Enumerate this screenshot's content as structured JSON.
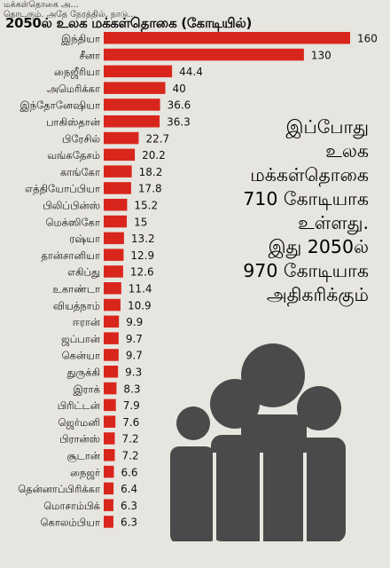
{
  "top_text": {
    "line1": "மக்கள்தொகை அ...                                         ",
    "line2": "தொடரும்.   அதே   நேரத்தில்,   நாடு..."
  },
  "annotation": {
    "lines": [
      "இப்போது",
      "உலக",
      "மக்கள்தொகை",
      "710 கோடியாக",
      "உள்ளது.",
      "இது 2050ல்",
      "970 கோடியாக",
      "அதிகரிக்கும்"
    ]
  },
  "colors": {
    "bar": "#d9261c",
    "background": "#e7e5df",
    "figures": "#4a4a4a"
  },
  "chart_data": {
    "type": "bar",
    "orientation": "horizontal",
    "title": "2050ல் உலக மக்கள்தொகை (கோடியில்)",
    "categories": [
      "இந்தியா",
      "சீனா",
      "நைஜீரியா",
      "அமெரிக்கா",
      "இந்தோனேஷியா",
      "பாகிஸ்தான்",
      "பிரேசில்",
      "வங்கதேசம்",
      "காங்கோ",
      "எத்தியோப்பியா",
      "பிலிப்பின்ஸ்",
      "மெக்ஸிகோ",
      "ரஷ்யா",
      "தான்சானியா",
      "எகிப்து",
      "உகாண்டா",
      "வியத்நாம்",
      "ஈரான்",
      "ஜப்பான்",
      "கென்யா",
      "துருக்கி",
      "இராக்",
      "பிரிட்டன்",
      "ஜெர்மனி",
      "பிரான்ஸ்",
      "சூடான்",
      "நைஜர்",
      "தென்னாப்பிரிக்கா",
      "மொசாம்பிக்",
      "கொலம்பியா"
    ],
    "values": [
      160,
      130,
      44.4,
      40,
      36.6,
      36.3,
      22.7,
      20.2,
      18.2,
      17.8,
      15.2,
      15,
      13.2,
      12.9,
      12.6,
      11.4,
      10.9,
      9.9,
      9.7,
      9.7,
      9.3,
      8.3,
      7.9,
      7.6,
      7.2,
      7.2,
      6.6,
      6.4,
      6.3,
      6.3
    ],
    "value_labels": [
      "160",
      "130",
      "44.4",
      "40",
      "36.6",
      "36.3",
      "22.7",
      "20.2",
      "18.2",
      "17.8",
      "15.2",
      "15",
      "13.2",
      "12.9",
      "12.6",
      "11.4",
      "10.9",
      "9.9",
      "9.7",
      "9.7",
      "9.3",
      "8.3",
      "7.9",
      "7.6",
      "7.2",
      "7.2",
      "6.6",
      "6.4",
      "6.3",
      "6.3"
    ],
    "xlim": [
      0,
      160
    ]
  }
}
